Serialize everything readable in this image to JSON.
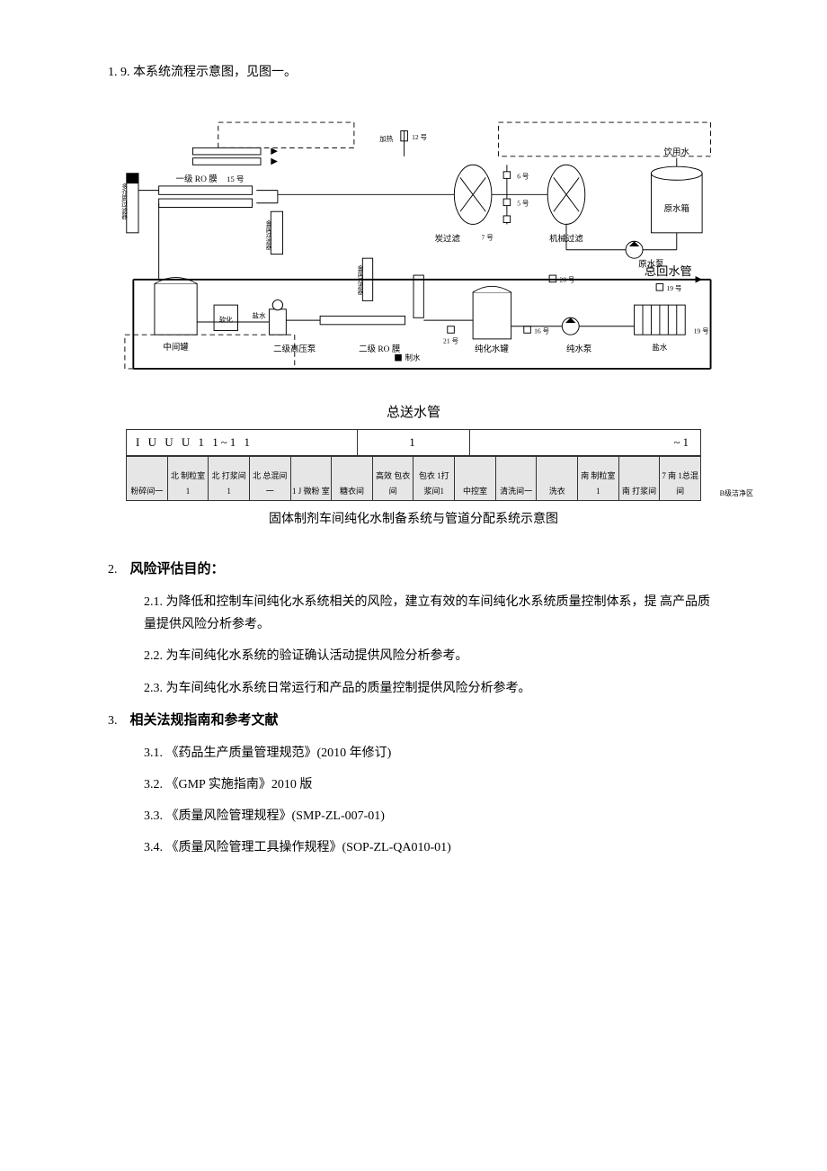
{
  "intro": {
    "num": "1. 9.",
    "text": "本系统流程示意图，见图一。"
  },
  "diagram": {
    "caption": "固体制剂车间纯化水制备系统与管道分配系统示意图",
    "supply_pipe_label": "总送水管",
    "return_pipe_label": "总回水管",
    "labels": {
      "drink_water": "饮用水",
      "raw_tank": "原水箱",
      "raw_pump": "原水泵",
      "mech_filter": "机械过滤",
      "carbon_filter": "炭过滤",
      "softener": "软化",
      "ro1": "一级 RO 膜",
      "ro2": "二级 RO 膜",
      "hp_pump2": "二级高压泵",
      "mid_tank": "中间罐",
      "pure_tank": "纯化水罐",
      "pure_pump": "纯水泵",
      "salt_box": "盐水",
      "make_water": "制水",
      "heater": "加热",
      "v12": "12 号",
      "v15": "15 号",
      "v5": "5 号",
      "v6": "6 号",
      "v7": "7 号",
      "v16": "16 号",
      "v19": "19 号",
      "v20": "20 号",
      "v21": "21 号",
      "sec_filter1": "金属过滤器",
      "sec_filter2": "金属过滤器",
      "sec_filter3": "多介质过滤器"
    },
    "colors": {
      "stroke": "#000000",
      "dash": "#000000",
      "tank_fill": "#ffffff",
      "bg": "#ffffff"
    },
    "room_row_header": "I U U U 1 1~1 1",
    "room_row_mid": "1",
    "room_row_right": "~1",
    "rooms": [
      "粉碎间一",
      "北 制粒室1",
      "北 打浆间1",
      "北 总混间一",
      "1 J 微粉 室",
      "糖衣间",
      "高效 包衣间",
      "包衣 1打浆间1",
      "中控室",
      "清洗间一",
      "洗衣",
      "南 制粒室1",
      "南 打浆间",
      "7 南 1总混间"
    ],
    "side_note": "B级洁净区"
  },
  "sections": [
    {
      "num": "2.",
      "title": "风险评估目的：",
      "items": [
        {
          "num": "2.1.",
          "text": "为降低和控制车间纯化水系统相关的风险，建立有效的车间纯化水系统质量控制体系，提 高产品质量提供风险分析参考。",
          "wrap": true
        },
        {
          "num": "2.2.",
          "text": "为车间纯化水系统的验证确认活动提供风险分析参考。"
        },
        {
          "num": "2.3.",
          "text": "为车间纯化水系统日常运行和产品的质量控制提供风险分析参考。"
        }
      ]
    },
    {
      "num": "3.",
      "title": "相关法规指南和参考文献",
      "items": [
        {
          "num": "3.1.",
          "text": "《药品生产质量管理规范》(2010 年修订)"
        },
        {
          "num": "3.2.",
          "text": "《GMP 实施指南》2010 版"
        },
        {
          "num": "3.3.",
          "text": "《质量风险管理规程》(SMP-ZL-007-01)"
        },
        {
          "num": "3.4.",
          "text": "《质量风险管理工具操作规程》(SOP-ZL-QA010-01)"
        }
      ]
    }
  ]
}
